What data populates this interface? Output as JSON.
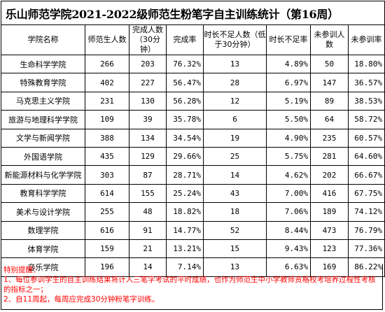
{
  "title": "乐山师范学院2021-2022级师范生粉笔字自主训练统计（第16周）",
  "headers": [
    "学院名称",
    "师范生人数",
    "完成人数（30分钟）",
    "完成率",
    "时长不足人数（低于30分钟）",
    "时长不足率",
    "未参训人数",
    "未参训率"
  ],
  "rows": [
    {
      "name": "生命科学学院",
      "total": "266",
      "done": "203",
      "done_rate": "76.32%",
      "short": "13",
      "short_rate": "4.89%",
      "absent": "50",
      "absent_rate": "18.80%"
    },
    {
      "name": "特殊教育学院",
      "total": "402",
      "done": "227",
      "done_rate": "56.47%",
      "short": "28",
      "short_rate": "6.97%",
      "absent": "147",
      "absent_rate": "36.57%"
    },
    {
      "name": "马克思主义学院",
      "total": "231",
      "done": "130",
      "done_rate": "56.28%",
      "short": "12",
      "short_rate": "5.19%",
      "absent": "89",
      "absent_rate": "38.53%"
    },
    {
      "name": "旅游与地理科学学院",
      "total": "109",
      "done": "39",
      "done_rate": "35.78%",
      "short": "6",
      "short_rate": "5.50%",
      "absent": "64",
      "absent_rate": "58.72%"
    },
    {
      "name": "文学与新闻学院",
      "total": "388",
      "done": "134",
      "done_rate": "34.54%",
      "short": "19",
      "short_rate": "4.90%",
      "absent": "235",
      "absent_rate": "60.57%"
    },
    {
      "name": "外国语学院",
      "total": "435",
      "done": "129",
      "done_rate": "29.66%",
      "short": "25",
      "short_rate": "5.75%",
      "absent": "281",
      "absent_rate": "64.60%"
    },
    {
      "name": "新能源材料与化学学院",
      "total": "303",
      "done": "87",
      "done_rate": "28.71%",
      "short": "14",
      "short_rate": "4.62%",
      "absent": "202",
      "absent_rate": "66.67%"
    },
    {
      "name": "教育科学学院",
      "total": "614",
      "done": "155",
      "done_rate": "25.24%",
      "short": "43",
      "short_rate": "7.00%",
      "absent": "416",
      "absent_rate": "67.75%"
    },
    {
      "name": "美术与设计学院",
      "total": "255",
      "done": "48",
      "done_rate": "18.82%",
      "short": "18",
      "short_rate": "7.06%",
      "absent": "189",
      "absent_rate": "74.12%"
    },
    {
      "name": "数理学院",
      "total": "616",
      "done": "91",
      "done_rate": "14.77%",
      "short": "52",
      "short_rate": "8.44%",
      "absent": "473",
      "absent_rate": "76.79%"
    },
    {
      "name": "体育学院",
      "total": "159",
      "done": "21",
      "done_rate": "13.21%",
      "short": "15",
      "short_rate": "9.43%",
      "absent": "123",
      "absent_rate": "77.36%"
    },
    {
      "name": "音乐学院",
      "total": "196",
      "done": "14",
      "done_rate": "7.14%",
      "short": "13",
      "short_rate": "6.63%",
      "absent": "169",
      "absent_rate": "86.22%"
    }
  ],
  "notes": {
    "heading": "特别提醒：",
    "line1": "1、每位参训学生的自主训练结果将计入三笔字考试的平时成绩，也作为师范生中小学教师资格校考培养过程性考核的指标之一；",
    "line2": "2、自11周起，每周应完成30分钟粉笔字训练。"
  }
}
